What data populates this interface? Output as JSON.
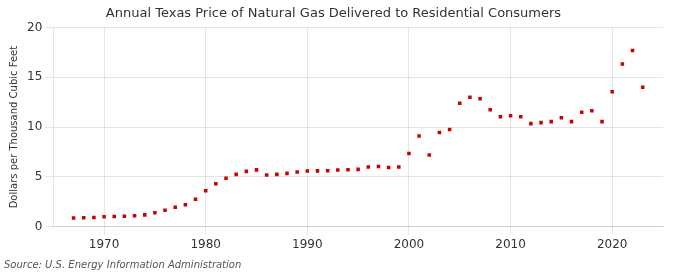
{
  "chart_data": {
    "type": "scatter",
    "title": "Annual Texas Price of Natural Gas Delivered to Residential Consumers",
    "ylabel": "Dollars per Thousand Cubic Feet",
    "annotation": "Source: U.S. Energy Information Administration",
    "x": [
      1967,
      1968,
      1969,
      1970,
      1971,
      1972,
      1973,
      1974,
      1975,
      1976,
      1977,
      1978,
      1979,
      1980,
      1981,
      1982,
      1983,
      1984,
      1985,
      1986,
      1987,
      1988,
      1989,
      1990,
      1991,
      1992,
      1993,
      1994,
      1995,
      1996,
      1997,
      1998,
      1999,
      2000,
      2001,
      2002,
      2003,
      2004,
      2005,
      2006,
      2007,
      2008,
      2009,
      2010,
      2011,
      2012,
      2013,
      2014,
      2015,
      2016,
      2017,
      2018,
      2019,
      2020,
      2021,
      2022,
      2023
    ],
    "values": [
      0.87,
      0.89,
      0.92,
      0.98,
      1.02,
      1.05,
      1.1,
      1.18,
      1.4,
      1.65,
      1.95,
      2.2,
      2.75,
      3.6,
      4.3,
      4.85,
      5.25,
      5.55,
      5.7,
      5.18,
      5.25,
      5.35,
      5.48,
      5.58,
      5.6,
      5.62,
      5.68,
      5.72,
      5.75,
      6.0,
      6.05,
      5.95,
      6.0,
      7.35,
      9.1,
      7.2,
      9.45,
      9.75,
      12.4,
      13.0,
      12.85,
      11.75,
      11.05,
      11.15,
      11.05,
      10.35,
      10.45,
      10.55,
      10.95,
      10.55,
      11.5,
      11.65,
      10.55,
      13.55,
      16.35,
      17.7,
      14.0
    ],
    "color": "#cc0000",
    "marker": "square",
    "xlim": [
      1965,
      2025
    ],
    "xticks": [
      1970,
      1980,
      1990,
      2000,
      2010,
      2020
    ],
    "ylim": [
      0,
      20
    ],
    "yticks": [
      0,
      5,
      10,
      15,
      20
    ],
    "grid": true,
    "legend": false
  }
}
